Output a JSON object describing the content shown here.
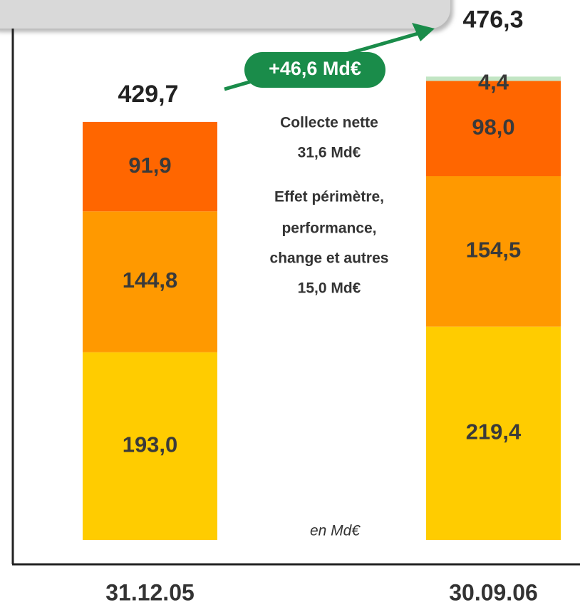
{
  "chart_data": {
    "type": "stacked_bar",
    "categories": [
      "31.12.05",
      "30.09.06"
    ],
    "series": [
      {
        "color": "#FFCC00",
        "values": [
          193.0,
          219.4
        ],
        "value_labels": [
          "193,0",
          "219,4"
        ]
      },
      {
        "color": "#FF9900",
        "values": [
          144.8,
          154.5
        ],
        "value_labels": [
          "144,8",
          "154,5"
        ]
      },
      {
        "color": "#FF6600",
        "values": [
          91.9,
          98.0
        ],
        "value_labels": [
          "91,9",
          "98,0"
        ]
      },
      {
        "color": "#C2E5C4",
        "values": [
          null,
          4.4
        ],
        "value_labels": [
          null,
          "4,4"
        ]
      }
    ],
    "totals": [
      429.7,
      476.3
    ],
    "total_labels": [
      "429,7",
      "476,3"
    ],
    "annotations": [
      "+46,6 Md€",
      "Collecte nette",
      "31,6 Md€",
      "Effet périmètre,",
      "performance,",
      "change et autres",
      "15,0 Md€",
      "en Md€"
    ],
    "ylim": [
      0,
      555
    ]
  }
}
